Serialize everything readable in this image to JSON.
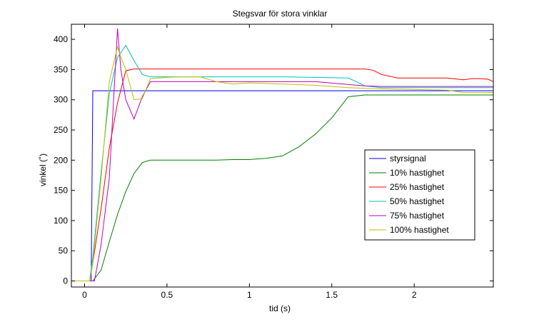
{
  "chart_data": {
    "type": "line",
    "title": "Stegsvar för stora vinklar",
    "xlabel": "tid (s)",
    "ylabel": "vinkel (˚)",
    "xlim": [
      -0.08,
      2.48
    ],
    "ylim": [
      -10,
      425
    ],
    "xticks": [
      0,
      0.5,
      1,
      1.5,
      2
    ],
    "xtick_labels": [
      "0",
      "0.5",
      "1",
      "1.5",
      "2"
    ],
    "yticks": [
      0,
      50,
      100,
      150,
      200,
      250,
      300,
      350,
      400
    ],
    "ytick_labels": [
      "0",
      "50",
      "100",
      "150",
      "200",
      "250",
      "300",
      "350",
      "400"
    ],
    "grid": false,
    "legend_position": "center-right",
    "series": [
      {
        "name": "styrsignal",
        "color": "#0000ff",
        "x": [
          -0.08,
          0.04,
          0.05,
          2.48
        ],
        "y": [
          0,
          0,
          315,
          315
        ]
      },
      {
        "name": "10% hastighet",
        "color": "#008000",
        "x": [
          -0.08,
          0.05,
          0.1,
          0.15,
          0.2,
          0.25,
          0.3,
          0.35,
          0.4,
          0.5,
          0.6,
          0.7,
          0.8,
          0.9,
          1.0,
          1.1,
          1.2,
          1.3,
          1.4,
          1.5,
          1.6,
          1.7,
          1.8,
          1.9,
          2.0,
          2.2,
          2.48
        ],
        "y": [
          0,
          0,
          18,
          65,
          110,
          148,
          178,
          196,
          200,
          200,
          200,
          200,
          200,
          201,
          201,
          203,
          207,
          222,
          243,
          270,
          305,
          308,
          308,
          308,
          308,
          308,
          308
        ]
      },
      {
        "name": "25% hastighet",
        "color": "#ff0000",
        "x": [
          -0.08,
          0.03,
          0.05,
          0.1,
          0.15,
          0.2,
          0.25,
          0.3,
          0.4,
          0.6,
          0.8,
          1.0,
          1.2,
          1.4,
          1.6,
          1.7,
          1.75,
          1.8,
          1.9,
          2.0,
          2.2,
          2.3,
          2.35,
          2.4,
          2.45,
          2.48
        ],
        "y": [
          0,
          0,
          30,
          120,
          220,
          295,
          348,
          351,
          351,
          351,
          351,
          351,
          351,
          351,
          351,
          351,
          349,
          342,
          336,
          336,
          336,
          333,
          335,
          335,
          334,
          330
        ]
      },
      {
        "name": "50% hastighet",
        "color": "#00bfbf",
        "x": [
          -0.08,
          0.03,
          0.05,
          0.1,
          0.15,
          0.2,
          0.25,
          0.3,
          0.35,
          0.4,
          0.6,
          0.8,
          1.0,
          1.2,
          1.4,
          1.6,
          1.65,
          1.7,
          1.8,
          2.0,
          2.2,
          2.48
        ],
        "y": [
          0,
          0,
          40,
          180,
          310,
          370,
          390,
          365,
          342,
          338,
          338,
          338,
          338,
          338,
          337,
          336,
          330,
          323,
          320,
          320,
          320,
          320
        ]
      },
      {
        "name": "75% hastighet",
        "color": "#bf00bf",
        "x": [
          -0.08,
          0.06,
          0.1,
          0.15,
          0.2,
          0.22,
          0.25,
          0.3,
          0.35,
          0.4,
          0.5,
          0.7,
          1.0,
          1.2,
          1.4,
          1.7,
          1.8,
          2.0,
          2.2,
          2.48
        ],
        "y": [
          0,
          0,
          60,
          170,
          418,
          350,
          300,
          268,
          305,
          330,
          330,
          330,
          330,
          330,
          330,
          323,
          322,
          322,
          322,
          322
        ]
      },
      {
        "name": "100% hastighet",
        "color": "#bfbf00",
        "x": [
          -0.08,
          0.03,
          0.05,
          0.1,
          0.15,
          0.2,
          0.22,
          0.25,
          0.3,
          0.35,
          0.4,
          0.5,
          0.6,
          0.7,
          0.8,
          0.9,
          1.0,
          1.2,
          1.4,
          1.6,
          1.8,
          2.0,
          2.2,
          2.25,
          2.3,
          2.48
        ],
        "y": [
          0,
          0,
          30,
          170,
          330,
          388,
          370,
          350,
          300,
          302,
          335,
          337,
          338,
          338,
          330,
          326,
          328,
          326,
          324,
          320,
          318,
          317,
          316,
          314,
          312,
          312
        ]
      }
    ]
  }
}
